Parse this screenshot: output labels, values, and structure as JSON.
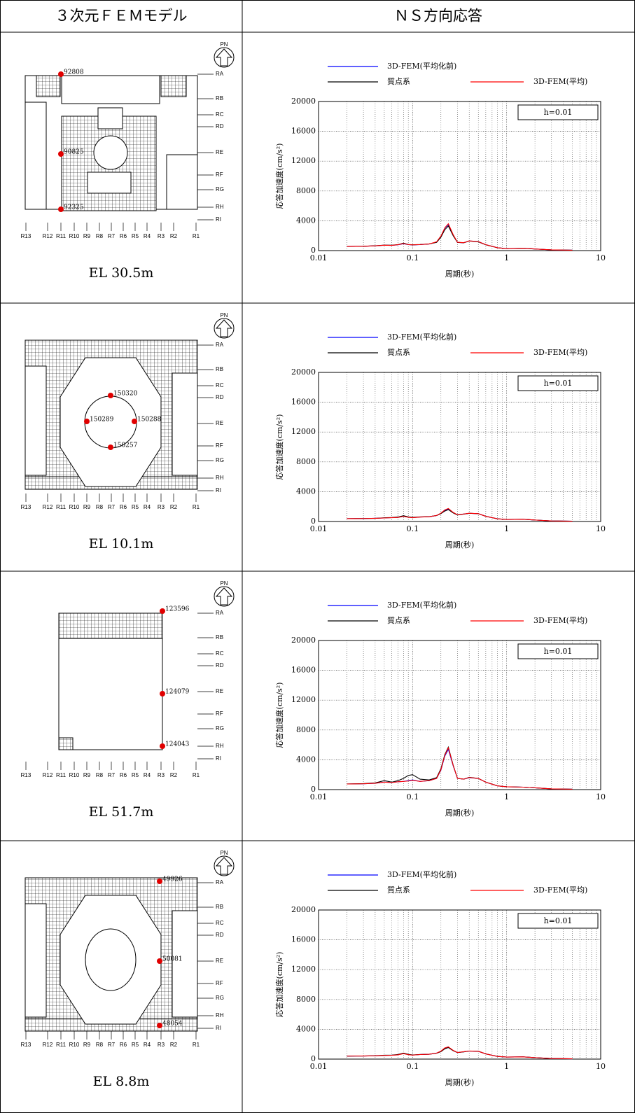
{
  "header": [
    "３次元ＦＥＭモデル",
    "ＮＳ方向応答"
  ],
  "north": "PN",
  "grid_rows": [
    "RA",
    "RB",
    "RC",
    "RD",
    "RE",
    "RF",
    "RG",
    "RH",
    "RI"
  ],
  "grid_cols": [
    "R13",
    "R12",
    "R11",
    "R10",
    "R9",
    "R8",
    "R7",
    "R6",
    "R5",
    "R4",
    "R3",
    "R2",
    "R1"
  ],
  "rows": [
    {
      "elevation": "EL 30.5m",
      "nodes": [
        "92808",
        "90825",
        "92325"
      ]
    },
    {
      "elevation": "EL 10.1m",
      "nodes": [
        "150320",
        "150289",
        "150288",
        "150257"
      ]
    },
    {
      "elevation": "EL 51.7m",
      "nodes": [
        "123596",
        "124079",
        "124043"
      ]
    },
    {
      "elevation": "EL 8.8m",
      "nodes": [
        "49926",
        "50081",
        "48054"
      ]
    }
  ],
  "chart_data": [
    {
      "type": "line",
      "xscale": "log",
      "grid": true,
      "annotation": "h=0.01",
      "xlabel": "周期(秒)",
      "ylabel": "応答加速度(cm/s²)",
      "xlim": [
        0.01,
        10
      ],
      "xticks": [
        0.01,
        0.1,
        1,
        10
      ],
      "ylim": [
        0,
        20000
      ],
      "yticks": [
        0,
        4000,
        8000,
        12000,
        16000,
        20000
      ],
      "x": [
        0.02,
        0.03,
        0.04,
        0.05,
        0.06,
        0.07,
        0.08,
        0.09,
        0.1,
        0.12,
        0.15,
        0.18,
        0.2,
        0.22,
        0.24,
        0.27,
        0.3,
        0.35,
        0.4,
        0.5,
        0.6,
        0.8,
        1,
        1.5,
        2,
        3,
        5
      ],
      "series": [
        {
          "name": "3D-FEM(平均化前)",
          "color": "#0000ff",
          "values": [
            560,
            580,
            640,
            720,
            700,
            780,
            920,
            800,
            760,
            800,
            880,
            1150,
            1900,
            3000,
            3500,
            2100,
            1100,
            1050,
            1300,
            1200,
            800,
            380,
            260,
            320,
            220,
            100,
            50
          ]
        },
        {
          "name": "質点系",
          "color": "#000000",
          "values": [
            560,
            580,
            650,
            740,
            720,
            800,
            1000,
            820,
            780,
            820,
            900,
            1100,
            1800,
            2800,
            3300,
            2000,
            1100,
            1050,
            1280,
            1180,
            780,
            380,
            260,
            310,
            210,
            100,
            50
          ]
        },
        {
          "name": "3D-FEM(平均)",
          "color": "#ff0000",
          "values": [
            560,
            580,
            640,
            720,
            700,
            790,
            940,
            810,
            770,
            810,
            890,
            1180,
            1950,
            3050,
            3600,
            2150,
            1120,
            1060,
            1310,
            1210,
            800,
            380,
            260,
            320,
            220,
            100,
            50
          ]
        }
      ]
    },
    {
      "type": "line",
      "xscale": "log",
      "grid": true,
      "annotation": "h=0.01",
      "xlabel": "周期(秒)",
      "ylabel": "応答加速度(cm/s²)",
      "xlim": [
        0.01,
        10
      ],
      "xticks": [
        0.01,
        0.1,
        1,
        10
      ],
      "ylim": [
        0,
        20000
      ],
      "yticks": [
        0,
        4000,
        8000,
        12000,
        16000,
        20000
      ],
      "x": [
        0.02,
        0.03,
        0.04,
        0.05,
        0.06,
        0.07,
        0.08,
        0.09,
        0.1,
        0.12,
        0.15,
        0.18,
        0.2,
        0.22,
        0.24,
        0.27,
        0.3,
        0.35,
        0.4,
        0.5,
        0.6,
        0.8,
        1,
        1.5,
        2,
        3,
        5
      ],
      "series": [
        {
          "name": "3D-FEM(平均化前)",
          "color": "#0000ff",
          "values": [
            380,
            400,
            430,
            480,
            520,
            560,
            700,
            580,
            520,
            600,
            640,
            800,
            1100,
            1500,
            1700,
            1200,
            900,
            1000,
            1100,
            1050,
            700,
            360,
            280,
            300,
            200,
            80,
            40
          ]
        },
        {
          "name": "質点系",
          "color": "#000000",
          "values": [
            380,
            400,
            420,
            500,
            540,
            600,
            780,
            620,
            560,
            620,
            650,
            800,
            1050,
            1400,
            1600,
            1150,
            880,
            990,
            1100,
            1050,
            700,
            360,
            280,
            300,
            200,
            80,
            40
          ]
        },
        {
          "name": "3D-FEM(平均)",
          "color": "#ff0000",
          "values": [
            380,
            400,
            430,
            470,
            510,
            550,
            680,
            570,
            510,
            590,
            640,
            810,
            1120,
            1550,
            1750,
            1220,
            910,
            1010,
            1110,
            1050,
            700,
            360,
            280,
            300,
            200,
            80,
            40
          ]
        }
      ]
    },
    {
      "type": "line",
      "xscale": "log",
      "grid": true,
      "annotation": "h=0.01",
      "xlabel": "周期(秒)",
      "ylabel": "応答加速度(cm/s²)",
      "xlim": [
        0.01,
        10
      ],
      "xticks": [
        0.01,
        0.1,
        1,
        10
      ],
      "ylim": [
        0,
        20000
      ],
      "yticks": [
        0,
        4000,
        8000,
        12000,
        16000,
        20000
      ],
      "x": [
        0.02,
        0.03,
        0.04,
        0.05,
        0.06,
        0.07,
        0.08,
        0.09,
        0.1,
        0.12,
        0.15,
        0.18,
        0.2,
        0.22,
        0.24,
        0.27,
        0.3,
        0.35,
        0.4,
        0.5,
        0.6,
        0.8,
        1,
        1.5,
        2,
        3,
        5
      ],
      "series": [
        {
          "name": "3D-FEM(平均化前)",
          "color": "#0000ff",
          "values": [
            750,
            780,
            850,
            1000,
            950,
            1050,
            1100,
            1200,
            1300,
            1100,
            1200,
            1500,
            2600,
            4500,
            5400,
            3200,
            1500,
            1400,
            1600,
            1500,
            1000,
            500,
            380,
            330,
            240,
            100,
            50
          ]
        },
        {
          "name": "質点系",
          "color": "#000000",
          "values": [
            760,
            800,
            900,
            1200,
            1000,
            1200,
            1500,
            1900,
            2000,
            1400,
            1300,
            1600,
            2800,
            4700,
            5700,
            3300,
            1500,
            1400,
            1650,
            1500,
            1000,
            500,
            380,
            330,
            240,
            100,
            50
          ]
        },
        {
          "name": "3D-FEM(平均)",
          "color": "#ff0000",
          "values": [
            750,
            780,
            850,
            1000,
            950,
            1050,
            1100,
            1150,
            1250,
            1100,
            1200,
            1500,
            2650,
            4600,
            5600,
            3250,
            1500,
            1400,
            1620,
            1500,
            1000,
            500,
            380,
            330,
            240,
            100,
            50
          ]
        }
      ]
    },
    {
      "type": "line",
      "xscale": "log",
      "grid": true,
      "annotation": "h=0.01",
      "xlabel": "周期(秒)",
      "ylabel": "応答加速度(cm/s²)",
      "xlim": [
        0.01,
        10
      ],
      "xticks": [
        0.01,
        0.1,
        1,
        10
      ],
      "ylim": [
        0,
        20000
      ],
      "yticks": [
        0,
        4000,
        8000,
        12000,
        16000,
        20000
      ],
      "x": [
        0.02,
        0.03,
        0.04,
        0.05,
        0.06,
        0.07,
        0.08,
        0.09,
        0.1,
        0.12,
        0.15,
        0.18,
        0.2,
        0.22,
        0.24,
        0.27,
        0.3,
        0.35,
        0.4,
        0.5,
        0.6,
        0.8,
        1,
        1.5,
        2,
        3,
        5
      ],
      "series": [
        {
          "name": "3D-FEM(平均化前)",
          "color": "#0000ff",
          "values": [
            400,
            420,
            440,
            500,
            520,
            580,
            750,
            600,
            540,
            620,
            650,
            800,
            1050,
            1450,
            1600,
            1150,
            880,
            980,
            1080,
            1050,
            700,
            360,
            280,
            300,
            200,
            80,
            40
          ]
        },
        {
          "name": "質点系",
          "color": "#000000",
          "values": [
            400,
            420,
            450,
            520,
            540,
            620,
            800,
            640,
            560,
            620,
            650,
            790,
            1000,
            1380,
            1550,
            1120,
            870,
            970,
            1080,
            1050,
            700,
            360,
            280,
            300,
            200,
            80,
            40
          ]
        },
        {
          "name": "3D-FEM(平均)",
          "color": "#ff0000",
          "values": [
            400,
            420,
            440,
            490,
            510,
            570,
            730,
            590,
            530,
            610,
            650,
            810,
            1070,
            1500,
            1650,
            1170,
            890,
            990,
            1090,
            1050,
            700,
            360,
            280,
            300,
            200,
            80,
            40
          ]
        }
      ]
    }
  ]
}
